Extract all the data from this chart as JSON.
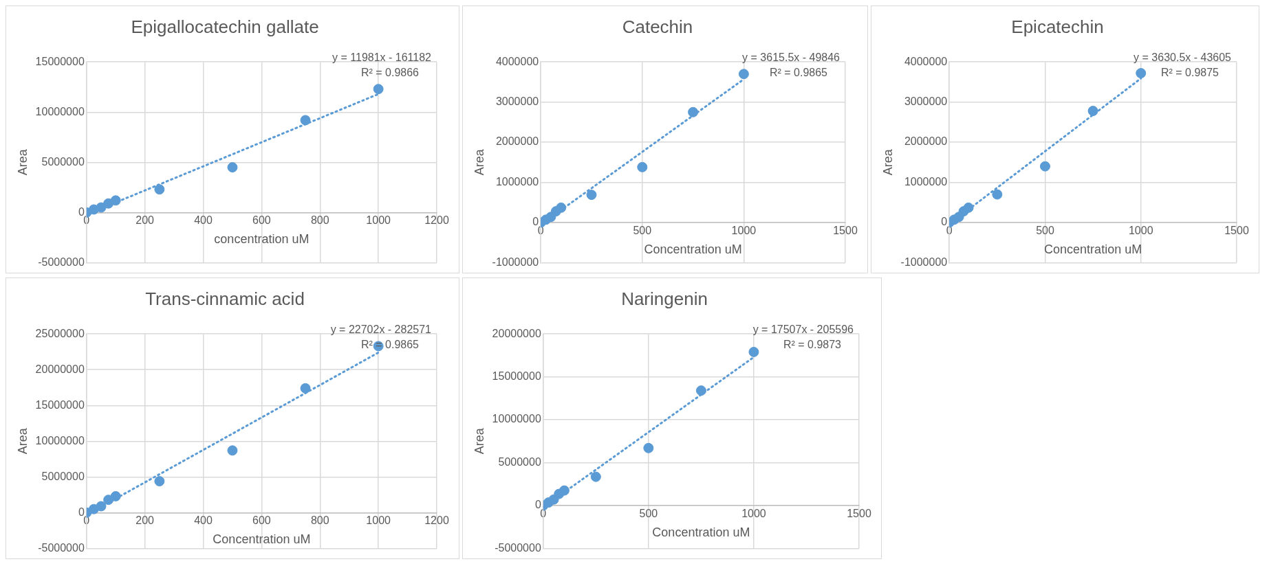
{
  "chart_data": [
    {
      "type": "scatter",
      "title": "Epigallocatechin gallate",
      "xlabel": "concentration uM",
      "ylabel": "Area",
      "xlim": [
        0,
        1200
      ],
      "xticks": [
        0,
        200,
        400,
        600,
        800,
        1000,
        1200
      ],
      "ylim": [
        -5000000,
        15000000
      ],
      "yticks": [
        -5000000,
        0,
        5000000,
        10000000,
        15000000
      ],
      "grid": true,
      "marker": "circle",
      "annotations": [
        "y = 11981x - 161182",
        "R² = 0.9866"
      ],
      "series": [
        {
          "color": "#5b9bd5",
          "x": [
            0,
            25,
            50,
            75,
            100,
            250,
            500,
            750,
            1000
          ],
          "values": [
            0,
            300000,
            500000,
            900000,
            1200000,
            2300000,
            4500000,
            9200000,
            12300000
          ]
        },
        {
          "type": "line",
          "color": "#5b9bd5",
          "line_style": "dotted",
          "marker": "none",
          "x": [
            0,
            1000
          ],
          "values": [
            -200000,
            11800000
          ]
        }
      ]
    },
    {
      "type": "scatter",
      "title": "Catechin",
      "xlabel": "Concentration uM",
      "ylabel": "Area",
      "xlim": [
        0,
        1500
      ],
      "xticks": [
        0,
        500,
        1000,
        1500
      ],
      "ylim": [
        -1000000,
        4000000
      ],
      "yticks": [
        -1000000,
        0,
        1000000,
        2000000,
        3000000,
        4000000
      ],
      "grid": true,
      "marker": "circle",
      "annotations": [
        "y = 3615.5x - 49846",
        "R² = 0.9865"
      ],
      "series": [
        {
          "color": "#5b9bd5",
          "x": [
            0,
            25,
            50,
            75,
            100,
            250,
            500,
            750,
            1000
          ],
          "values": [
            0,
            70000,
            140000,
            280000,
            370000,
            690000,
            1380000,
            2750000,
            3700000
          ]
        },
        {
          "type": "line",
          "color": "#5b9bd5",
          "line_style": "dotted",
          "marker": "none",
          "x": [
            0,
            1000
          ],
          "values": [
            -50000,
            3570000
          ]
        }
      ]
    },
    {
      "type": "scatter",
      "title": "Epicatechin",
      "xlabel": "Concentration uM",
      "ylabel": "Area",
      "xlim": [
        0,
        1500
      ],
      "xticks": [
        0,
        500,
        1000,
        1500
      ],
      "ylim": [
        -1000000,
        4000000
      ],
      "yticks": [
        -1000000,
        0,
        1000000,
        2000000,
        3000000,
        4000000
      ],
      "grid": true,
      "marker": "circle",
      "annotations": [
        "y = 3630.5x - 43605",
        "R² = 0.9875"
      ],
      "series": [
        {
          "color": "#5b9bd5",
          "x": [
            0,
            25,
            50,
            75,
            100,
            250,
            500,
            750,
            1000
          ],
          "values": [
            0,
            70000,
            140000,
            280000,
            370000,
            700000,
            1400000,
            2780000,
            3720000
          ]
        },
        {
          "type": "line",
          "color": "#5b9bd5",
          "line_style": "dotted",
          "marker": "none",
          "x": [
            0,
            1000
          ],
          "values": [
            -40000,
            3590000
          ]
        }
      ]
    },
    {
      "type": "scatter",
      "title": "Trans-cinnamic acid",
      "xlabel": "Concentration uM",
      "ylabel": "Area",
      "xlim": [
        0,
        1200
      ],
      "xticks": [
        0,
        200,
        400,
        600,
        800,
        1000,
        1200
      ],
      "ylim": [
        -5000000,
        25000000
      ],
      "yticks": [
        -5000000,
        0,
        5000000,
        10000000,
        15000000,
        20000000,
        25000000
      ],
      "grid": true,
      "marker": "circle",
      "annotations": [
        "y = 22702x - 282571",
        "R² = 0.9865"
      ],
      "series": [
        {
          "color": "#5b9bd5",
          "x": [
            0,
            25,
            50,
            75,
            100,
            250,
            500,
            750,
            1000
          ],
          "values": [
            0,
            500000,
            900000,
            1800000,
            2300000,
            4400000,
            8700000,
            17400000,
            23300000
          ]
        },
        {
          "type": "line",
          "color": "#5b9bd5",
          "line_style": "dotted",
          "marker": "none",
          "x": [
            0,
            1000
          ],
          "values": [
            -300000,
            22400000
          ]
        }
      ]
    },
    {
      "type": "scatter",
      "title": "Naringenin",
      "xlabel": "Concentration uM",
      "ylabel": "Area",
      "xlim": [
        0,
        1500
      ],
      "xticks": [
        0,
        500,
        1000,
        1500
      ],
      "ylim": [
        -5000000,
        20000000
      ],
      "yticks": [
        -5000000,
        0,
        5000000,
        10000000,
        15000000,
        20000000
      ],
      "grid": true,
      "marker": "circle",
      "annotations": [
        "y = 17507x - 205596",
        "R² = 0.9873"
      ],
      "series": [
        {
          "color": "#5b9bd5",
          "x": [
            0,
            25,
            50,
            75,
            100,
            250,
            500,
            750,
            1000
          ],
          "values": [
            0,
            350000,
            700000,
            1350000,
            1750000,
            3350000,
            6700000,
            13400000,
            17900000
          ]
        },
        {
          "type": "line",
          "color": "#5b9bd5",
          "line_style": "dotted",
          "marker": "none",
          "x": [
            0,
            1000
          ],
          "values": [
            -200000,
            17300000
          ]
        }
      ]
    }
  ]
}
